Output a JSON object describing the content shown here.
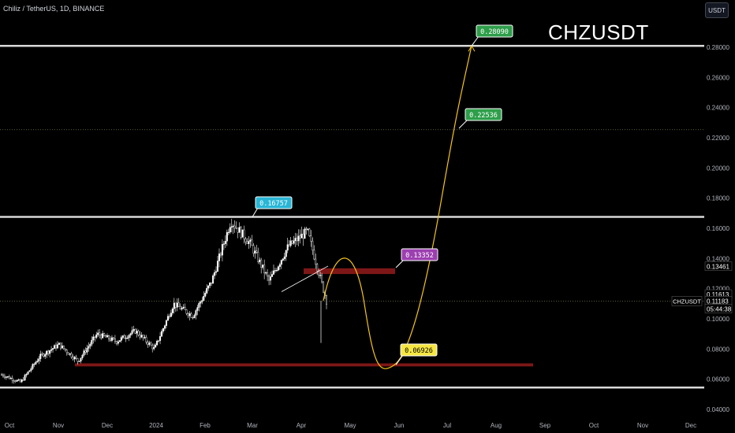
{
  "header": {
    "symbol_line": "Chiliz / TetherUS, 1D, BINANCE",
    "currency_button": "USDT",
    "big_title": "CHZUSDT"
  },
  "colors": {
    "background": "#000000",
    "up_candle": "#ffffff",
    "down_candle": "#ffffff",
    "level_line": "#d9d9d9",
    "projection": "#f5c518",
    "zone": "#8b1a1a",
    "cyan_tag": "#29b6d6",
    "green_tag": "#2e9e4a",
    "purple_tag": "#9c3fb0",
    "yellow_tag": "#f5e642"
  },
  "chart_data": {
    "type": "candlestick",
    "title": "CHZUSDT",
    "x_ticks": [
      "Oct",
      "Nov",
      "Dec",
      "2024",
      "Feb",
      "Mar",
      "Apr",
      "May",
      "Jun",
      "Jul",
      "Aug",
      "Sep",
      "Oct",
      "Nov",
      "Dec"
    ],
    "y_ticks": [
      "0.04000",
      "0.06000",
      "0.08000",
      "0.10000",
      "0.12000",
      "0.14000",
      "0.16000",
      "0.18000",
      "0.20000",
      "0.22000",
      "0.24000",
      "0.26000",
      "0.28000"
    ],
    "ylim": [
      0.036,
      0.3
    ],
    "price_tags": [
      {
        "label": "0.13461",
        "value": 0.13461
      },
      {
        "label": "0.11613",
        "value": 0.11613
      },
      {
        "label": "0.11183",
        "value": 0.11183
      },
      {
        "label": "05:44:38",
        "value": 0.1065
      }
    ],
    "current_symbol_tag": "CHZUSDT",
    "horizontal_levels": [
      0.2809,
      0.16757,
      0.0545
    ],
    "dotted_levels": [
      0.22536,
      0.1118
    ],
    "annotations": [
      {
        "label": "0.16757",
        "value": 0.16757,
        "color": "cyan"
      },
      {
        "label": "0.28090",
        "value": 0.2809,
        "color": "green"
      },
      {
        "label": "0.22536",
        "value": 0.22536,
        "color": "green"
      },
      {
        "label": "0.13352",
        "value": 0.13352,
        "color": "purple"
      },
      {
        "label": "0.06926",
        "value": 0.06926,
        "color": "yellow"
      }
    ],
    "zones": [
      {
        "from": 0.1297,
        "to": 0.1335
      },
      {
        "from": 0.0685,
        "to": 0.0705
      }
    ],
    "price_path": [
      [
        "Oct",
        0.063
      ],
      [
        "Oct",
        0.058
      ],
      [
        "Nov",
        0.075
      ],
      [
        "Nov",
        0.083
      ],
      [
        "Dec",
        0.072
      ],
      [
        "Dec",
        0.09
      ],
      [
        "2024",
        0.085
      ],
      [
        "2024",
        0.092
      ],
      [
        "Feb",
        0.08
      ],
      [
        "Feb",
        0.11
      ],
      [
        "Feb",
        0.102
      ],
      [
        "Mar",
        0.125
      ],
      [
        "Mar",
        0.165
      ],
      [
        "Mar",
        0.15
      ],
      [
        "Mar",
        0.125
      ],
      [
        "Apr",
        0.148
      ],
      [
        "Apr",
        0.158
      ],
      [
        "Apr",
        0.112
      ]
    ]
  }
}
